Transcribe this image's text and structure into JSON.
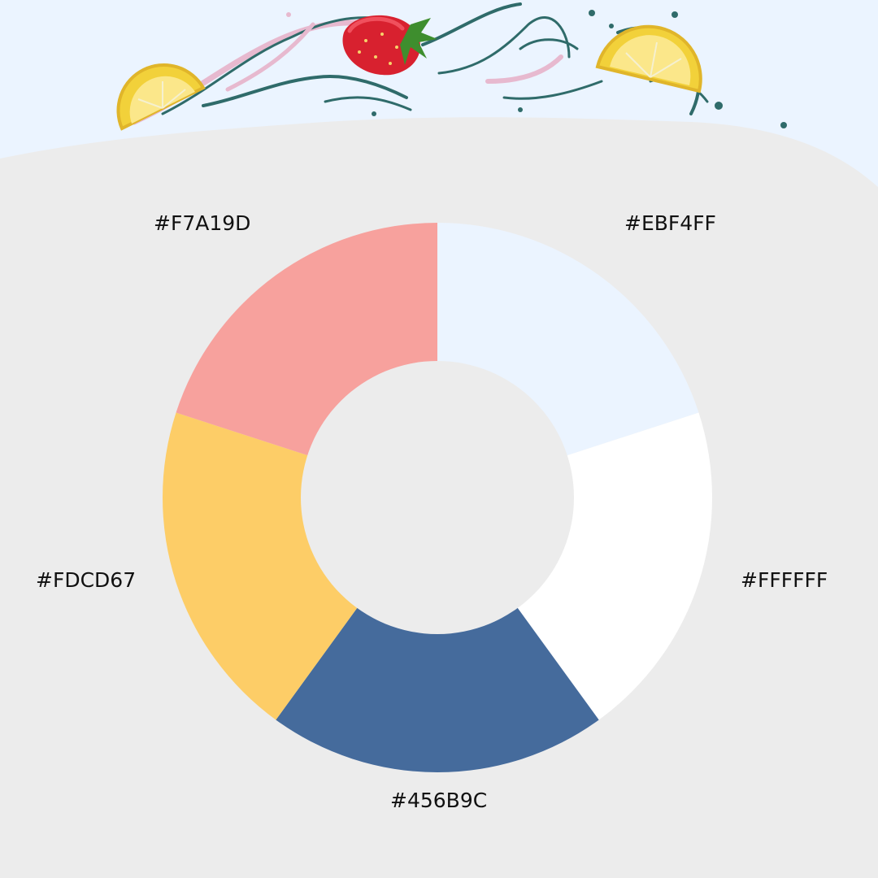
{
  "chart_data": {
    "type": "pie",
    "variant": "donut",
    "categories": [
      "#EBF4FF",
      "#FFFFFF",
      "#456B9C",
      "#FDCD67",
      "#F7A19D"
    ],
    "values": [
      1,
      1,
      1,
      1,
      1
    ],
    "colors": [
      "#EBF4FF",
      "#FFFFFF",
      "#456B9C",
      "#FDCD67",
      "#F7A19D"
    ],
    "title": "",
    "legend": "none"
  },
  "colors": {
    "background": "#ECECEC",
    "sky": "#EBF4FF",
    "splash": "#2F6B6A",
    "splash_pink": "#E7B9CF"
  },
  "decorations": {
    "top_icons": [
      "lemon-slice-icon",
      "strawberry-icon",
      "lemon-slice-icon"
    ]
  }
}
